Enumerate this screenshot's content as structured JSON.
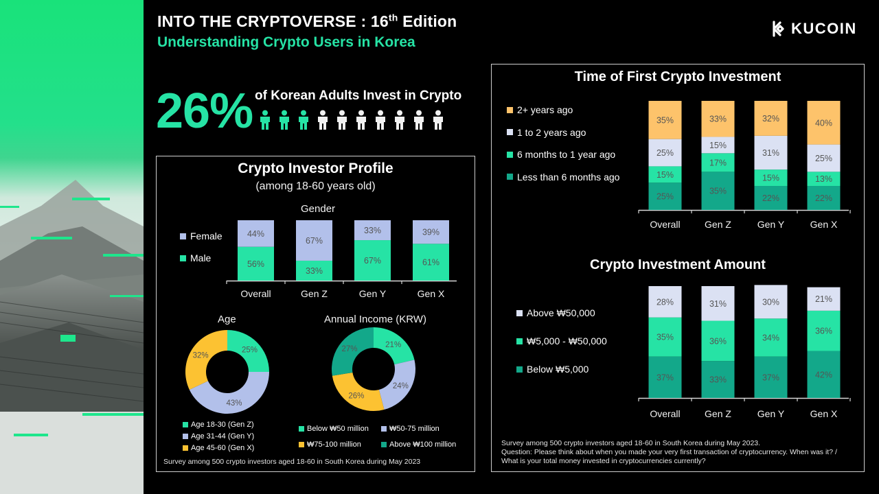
{
  "header": {
    "title": "INTO THE CRYPTOVERSE : 16",
    "title_sup": "th",
    "title_end": " Edition",
    "subtitle": "Understanding Crypto Users in Korea",
    "logo": "KUCOIN"
  },
  "headline": {
    "value": "26%",
    "label": "of Korean Adults Invest in Crypto",
    "people_total": 10,
    "people_highlighted": 3
  },
  "colors": {
    "green": "#26e3a5",
    "teal": "#13a88a",
    "lavender": "#b2c0ea",
    "pale": "#dbe1f3",
    "gold": "#fcc232",
    "peach": "#fdc36b"
  },
  "left_panel": {
    "title": "Crypto Investor Profile",
    "subtitle": "(among 18-60 years old)",
    "footnote": "Survey among 500 crypto investors aged 18-60 in South Korea during May 2023"
  },
  "right_panel": {
    "footnote_line1": "Survey among 500 crypto investors aged 18-60 in South Korea  during May 2023.",
    "footnote_line2": "Question: Please think about when you made your very first transaction of cryptocurrency. When was it? /",
    "footnote_line3": "What is your total money invested in cryptocurrencies currently?"
  },
  "chart_data": [
    {
      "id": "gender",
      "type": "bar",
      "stacked": true,
      "title": "Gender",
      "categories": [
        "Overall",
        "Gen Z",
        "Gen Y",
        "Gen X"
      ],
      "series": [
        {
          "name": "Male",
          "values": [
            56,
            33,
            67,
            61
          ],
          "labels": [
            "56%",
            "33%",
            "67%",
            "61%"
          ],
          "color": "#26e3a5"
        },
        {
          "name": "Female",
          "values": [
            44,
            67,
            33,
            39
          ],
          "labels": [
            "44%",
            "67%",
            "33%",
            "39%"
          ],
          "color": "#b2c0ea"
        }
      ],
      "legend_order": [
        "Female",
        "Male"
      ],
      "ylim": [
        0,
        100
      ],
      "legend_position": "left"
    },
    {
      "id": "age",
      "type": "pie",
      "donut": true,
      "title": "Age",
      "slices": [
        {
          "name": "Age 18-30 (Gen Z)",
          "value": 25,
          "label": "25%",
          "color": "#26e3a5"
        },
        {
          "name": "Age 31-44 (Gen Y)",
          "value": 43,
          "label": "43%",
          "color": "#b2c0ea"
        },
        {
          "name": "Age 45-60 (Gen X)",
          "value": 32,
          "label": "32%",
          "color": "#fcc232"
        }
      ],
      "legend_position": "bottom"
    },
    {
      "id": "income",
      "type": "pie",
      "donut": true,
      "title": "Annual Income (KRW)",
      "slices": [
        {
          "name": "Below ₩50 million",
          "value": 21,
          "label": "21%",
          "color": "#26e3a5"
        },
        {
          "name": "₩50-75 million",
          "value": 24,
          "label": "24%",
          "color": "#b2c0ea"
        },
        {
          "name": "₩75-100 million",
          "value": 26,
          "label": "26%",
          "color": "#fcc232"
        },
        {
          "name": "Above ₩100 million",
          "value": 27,
          "label": "27%",
          "color": "#13a88a"
        }
      ],
      "legend_position": "bottom"
    },
    {
      "id": "first_investment",
      "type": "bar",
      "stacked": true,
      "title": "Time of First Crypto Investment",
      "categories": [
        "Overall",
        "Gen Z",
        "Gen Y",
        "Gen X"
      ],
      "series": [
        {
          "name": "Less than 6 months ago",
          "values": [
            25,
            35,
            22,
            22
          ],
          "labels": [
            "25%",
            "35%",
            "22%",
            "22%"
          ],
          "color": "#13a88a"
        },
        {
          "name": "6 months to 1 year ago",
          "values": [
            15,
            17,
            15,
            13
          ],
          "labels": [
            "15%",
            "17%",
            "15%",
            "13%"
          ],
          "color": "#26e3a5"
        },
        {
          "name": "1 to 2 years ago",
          "values": [
            25,
            15,
            31,
            25
          ],
          "labels": [
            "25%",
            "15%",
            "31%",
            "25%"
          ],
          "color": "#dbe1f3"
        },
        {
          "name": "2+ years ago",
          "values": [
            35,
            33,
            32,
            40
          ],
          "labels": [
            "35%",
            "33%",
            "32%",
            "40%"
          ],
          "color": "#fdc36b"
        }
      ],
      "legend_order": [
        "2+ years ago",
        "1 to 2 years ago",
        "6 months to 1 year ago",
        "Less than 6 months ago"
      ],
      "ylim": [
        0,
        100
      ],
      "legend_position": "left"
    },
    {
      "id": "investment_amount",
      "type": "bar",
      "stacked": true,
      "title": "Crypto Investment Amount",
      "categories": [
        "Overall",
        "Gen Z",
        "Gen Y",
        "Gen X"
      ],
      "series": [
        {
          "name": "Below ₩5,000",
          "values": [
            37,
            33,
            37,
            42
          ],
          "labels": [
            "37%",
            "33%",
            "37%",
            "42%"
          ],
          "color": "#13a88a"
        },
        {
          "name": "₩5,000 - ₩50,000",
          "values": [
            35,
            36,
            34,
            36
          ],
          "labels": [
            "35%",
            "36%",
            "34%",
            "36%"
          ],
          "color": "#26e3a5"
        },
        {
          "name": "Above  ₩50,000",
          "values": [
            28,
            31,
            30,
            21
          ],
          "labels": [
            "28%",
            "31%",
            "30%",
            "21%"
          ],
          "color": "#dbe1f3"
        }
      ],
      "legend_order": [
        "Above  ₩50,000",
        "₩5,000 - ₩50,000",
        "Below ₩5,000"
      ],
      "ylim": [
        0,
        100
      ],
      "legend_position": "left"
    }
  ]
}
